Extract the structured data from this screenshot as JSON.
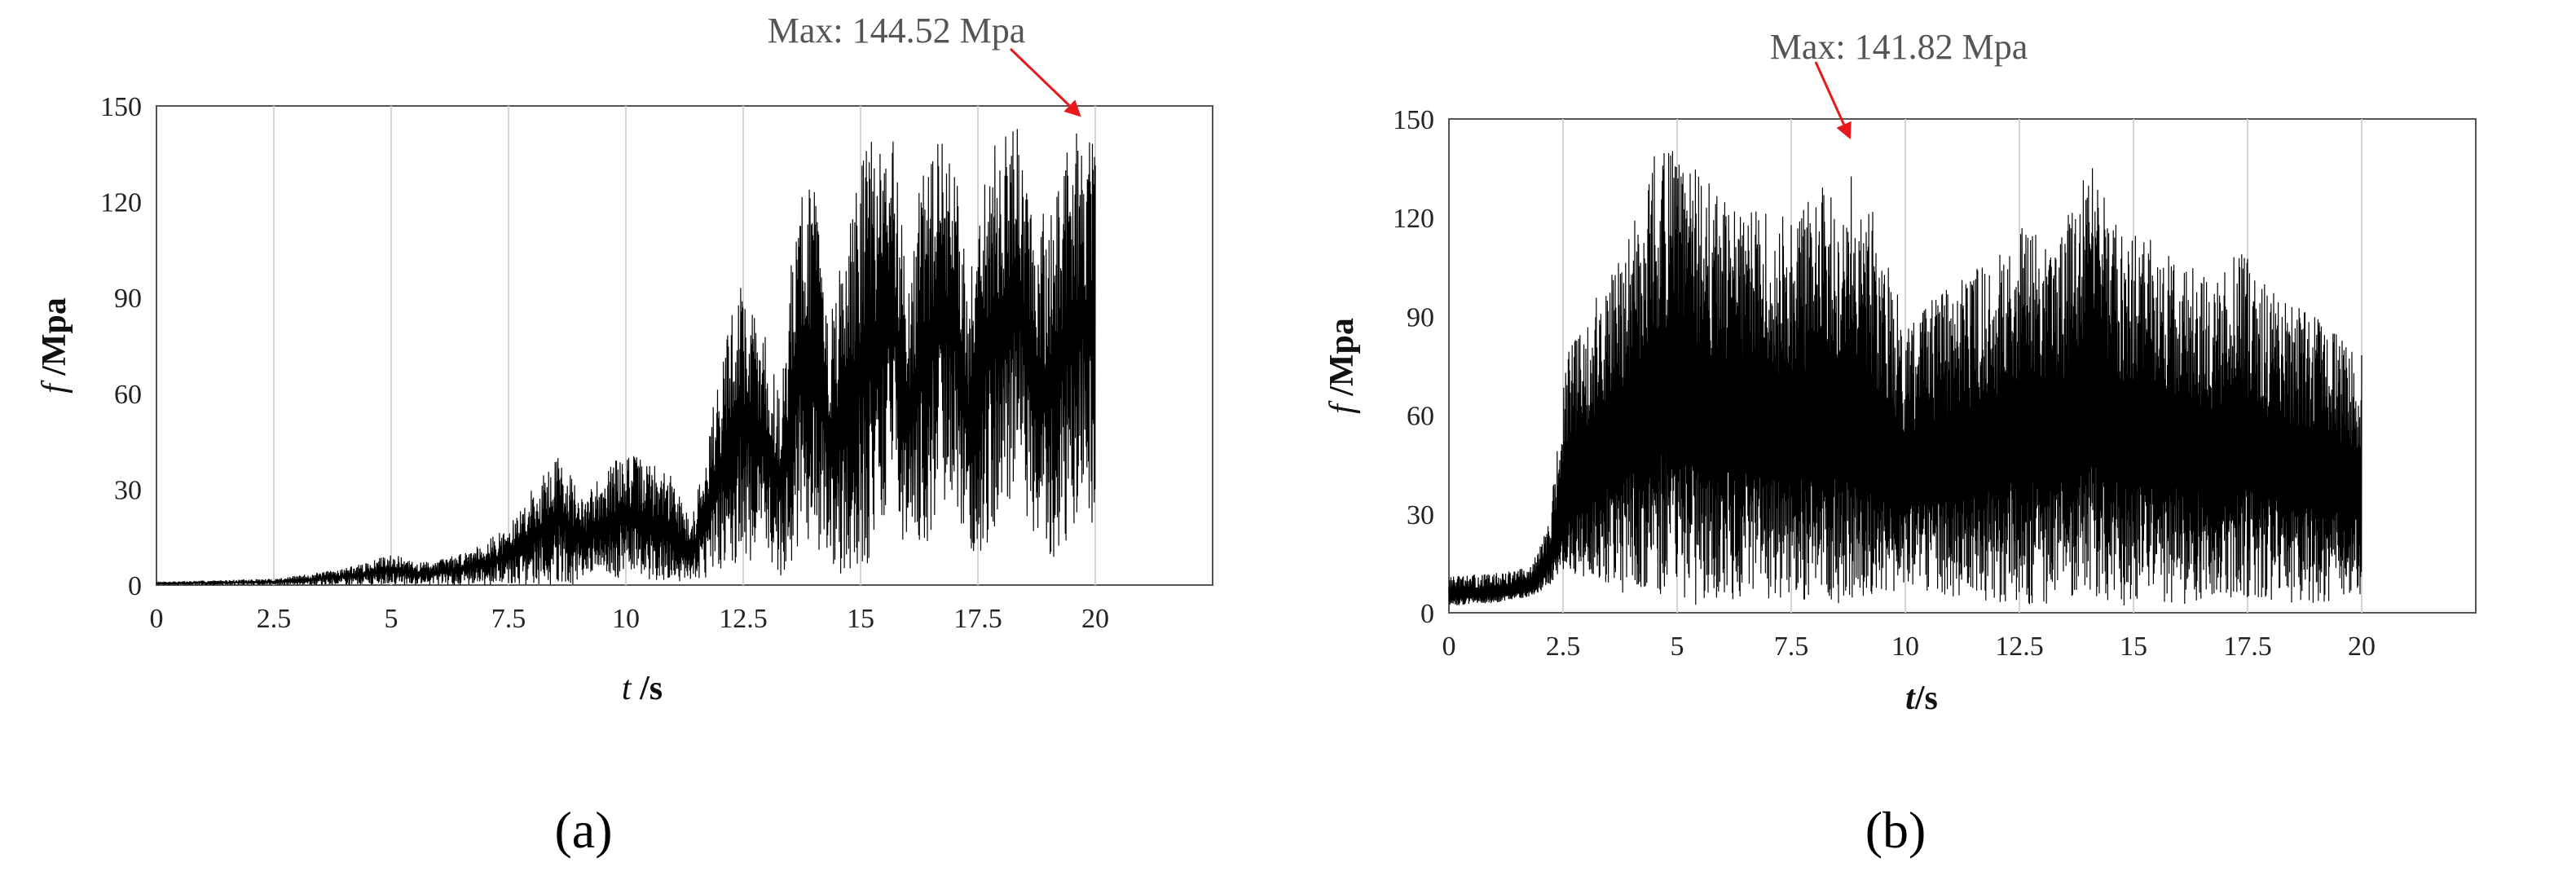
{
  "chart_data": [
    {
      "type": "line",
      "panel_label": "(a)",
      "xlabel_italic": "t",
      "xlabel_unit": " /s",
      "ylabel_italic": "f",
      "ylabel_unit": " /Mpa",
      "xlim": [
        0,
        22.5
      ],
      "ylim": [
        0,
        150
      ],
      "xticks": [
        "0",
        "2.5",
        "5",
        "7.5",
        "10",
        "12.5",
        "15",
        "17.5",
        "20"
      ],
      "yticks": [
        "0",
        "30",
        "60",
        "90",
        "120",
        "150"
      ],
      "grid": "vertical",
      "annotation": {
        "text": "Max: 144.52 Mpa",
        "x": 19.7,
        "y": 144.52
      },
      "envelope": {
        "t": [
          0,
          2.5,
          3.5,
          4.5,
          5,
          5.5,
          6,
          6.5,
          7,
          7.5,
          8,
          8.6,
          9.1,
          9.4,
          10,
          10.6,
          11,
          11.4,
          11.9,
          12.4,
          12.9,
          13.3,
          13.6,
          14,
          14.3,
          14.7,
          15,
          15.3,
          15.7,
          16,
          16.3,
          16.7,
          17,
          17.3,
          17.7,
          18,
          18.4,
          18.7,
          19.1,
          19.4,
          19.7,
          20
        ],
        "max": [
          1,
          2,
          4,
          7,
          10,
          7,
          8,
          10,
          14,
          18,
          30,
          42,
          26,
          35,
          42,
          38,
          34,
          20,
          60,
          97,
          82,
          58,
          120,
          133,
          88,
          105,
          135,
          140,
          142,
          100,
          128,
          140,
          135,
          95,
          140,
          143,
          143,
          115,
          120,
          140,
          144.52,
          137
        ],
        "min": [
          0,
          0,
          0,
          0,
          0,
          0,
          0,
          0,
          0,
          0,
          0,
          0,
          0,
          1,
          2,
          1,
          0,
          0,
          3,
          5,
          10,
          3,
          8,
          15,
          2,
          3,
          4,
          8,
          30,
          6,
          8,
          25,
          30,
          5,
          12,
          20,
          35,
          5,
          8,
          12,
          25,
          16
        ]
      }
    },
    {
      "type": "line",
      "panel_label": "(b)",
      "xlabel_italic": "t",
      "xlabel_unit": "/s",
      "ylabel_italic": "f",
      "ylabel_unit": " /Mpa",
      "xlim": [
        0,
        22.5
      ],
      "ylim": [
        0,
        150
      ],
      "xticks": [
        "0",
        "2.5",
        "5",
        "7.5",
        "10",
        "12.5",
        "15",
        "17.5",
        "20"
      ],
      "yticks": [
        "0",
        "30",
        "60",
        "90",
        "120",
        "150"
      ],
      "grid": "vertical",
      "annotation": {
        "text": "Max: 141.82 Mpa",
        "x": 8.8,
        "y": 141.82
      },
      "envelope": {
        "t": [
          0,
          1,
          1.8,
          2.2,
          2.6,
          3.2,
          3.8,
          4.5,
          4.8,
          5.2,
          6,
          7,
          7.5,
          8.2,
          8.8,
          9.3,
          10,
          11,
          12,
          12.5,
          13.3,
          14,
          14.7,
          15.2,
          16,
          16.8,
          17.3,
          18,
          19,
          20
        ],
        "max": [
          11,
          12,
          14,
          28,
          80,
          95,
          110,
          140,
          142,
          140,
          125,
          122,
          120,
          132,
          141.82,
          122,
          90,
          100,
          110,
          120,
          110,
          140,
          116,
          115,
          108,
          100,
          112,
          98,
          90,
          80
        ],
        "min": [
          2,
          3,
          5,
          8,
          12,
          10,
          6,
          5,
          4,
          2,
          3,
          4,
          5,
          2,
          2,
          3,
          8,
          5,
          3,
          2,
          3,
          4,
          2,
          3,
          2,
          3,
          4,
          3,
          3,
          5
        ],
        "center": [
          5,
          5,
          7,
          14,
          30,
          38,
          45,
          55,
          55,
          50,
          48,
          45,
          45,
          45,
          45,
          40,
          35,
          38,
          42,
          45,
          43,
          50,
          45,
          45,
          42,
          40,
          42,
          38,
          35,
          32
        ]
      }
    }
  ]
}
